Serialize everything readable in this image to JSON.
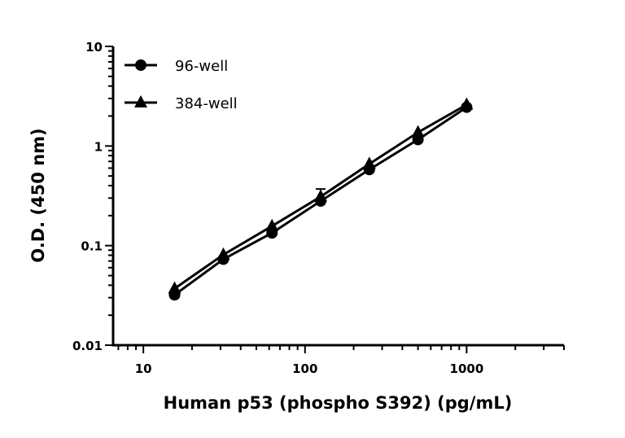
{
  "chart_data": {
    "type": "line",
    "title": "",
    "xlabel": "Human p53 (phospho S392) (pg/mL)",
    "ylabel": "O.D. (450 nm)",
    "xscale": "log",
    "yscale": "log",
    "xlim": [
      6.5,
      4000
    ],
    "ylim": [
      0.01,
      10
    ],
    "xticks": [
      10,
      100,
      1000
    ],
    "xtick_labels": [
      "10",
      "100",
      "1000"
    ],
    "yticks": [
      0.01,
      0.1,
      1,
      10
    ],
    "ytick_labels": [
      "0.01",
      "0.1",
      "1",
      "10"
    ],
    "grid": false,
    "legend_position": "top-left",
    "x": [
      15.6,
      31.25,
      62.5,
      125,
      250,
      500,
      1000
    ],
    "series": [
      {
        "name": "96-well",
        "marker": "circle",
        "values": [
          0.032,
          0.073,
          0.134,
          0.28,
          0.58,
          1.16,
          2.45
        ]
      },
      {
        "name": "384-well",
        "marker": "triangle",
        "values": [
          0.037,
          0.081,
          0.157,
          0.31,
          0.66,
          1.37,
          2.6
        ],
        "error_upper": [
          null,
          null,
          null,
          0.37,
          null,
          null,
          null
        ]
      }
    ]
  }
}
